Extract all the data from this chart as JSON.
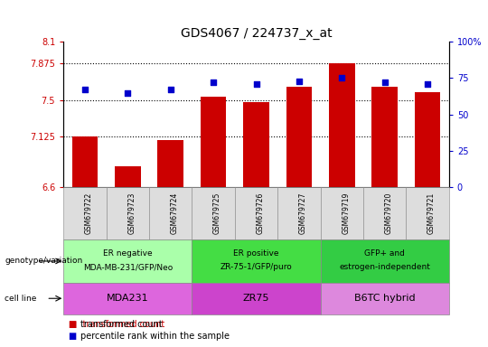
{
  "title": "GDS4067 / 224737_x_at",
  "samples": [
    "GSM679722",
    "GSM679723",
    "GSM679724",
    "GSM679725",
    "GSM679726",
    "GSM679727",
    "GSM679719",
    "GSM679720",
    "GSM679721"
  ],
  "bar_values": [
    7.125,
    6.82,
    7.09,
    7.535,
    7.48,
    7.64,
    7.875,
    7.64,
    7.58
  ],
  "percentile_values": [
    67,
    65,
    67,
    72,
    71,
    73,
    75,
    72,
    71
  ],
  "ylim_left": [
    6.6,
    8.1
  ],
  "ylim_right": [
    0,
    100
  ],
  "yticks_left": [
    6.6,
    7.125,
    7.5,
    7.875,
    8.1
  ],
  "ytick_labels_left": [
    "6.6",
    "7.125",
    "7.5",
    "7.875",
    "8.1"
  ],
  "yticks_right": [
    0,
    25,
    50,
    75,
    100
  ],
  "ytick_labels_right": [
    "0",
    "25",
    "50",
    "75",
    "100%"
  ],
  "hlines": [
    7.125,
    7.5,
    7.875
  ],
  "bar_color": "#cc0000",
  "dot_color": "#0000cc",
  "bar_width": 0.6,
  "groups": [
    {
      "label": "ER negative\nMDA-MB-231/GFP/Neo",
      "color": "#aaffaa",
      "span": [
        0,
        3
      ]
    },
    {
      "label": "ER positive\nZR-75-1/GFP/puro",
      "color": "#44dd44",
      "span": [
        3,
        6
      ]
    },
    {
      "label": "GFP+ and\nestrogen-independent",
      "color": "#33cc44",
      "span": [
        6,
        9
      ]
    }
  ],
  "cell_lines": [
    {
      "label": "MDA231",
      "color": "#dd66dd",
      "span": [
        0,
        3
      ]
    },
    {
      "label": "ZR75",
      "color": "#cc44cc",
      "span": [
        3,
        6
      ]
    },
    {
      "label": "B6TC hybrid",
      "color": "#dd88dd",
      "span": [
        6,
        9
      ]
    }
  ],
  "legend_items": [
    {
      "color": "#cc0000",
      "label": "transformed count"
    },
    {
      "color": "#0000cc",
      "label": "percentile rank within the sample"
    }
  ],
  "title_fontsize": 10,
  "tick_fontsize": 7,
  "annot_fontsize": 6.5,
  "cellline_fontsize": 8
}
